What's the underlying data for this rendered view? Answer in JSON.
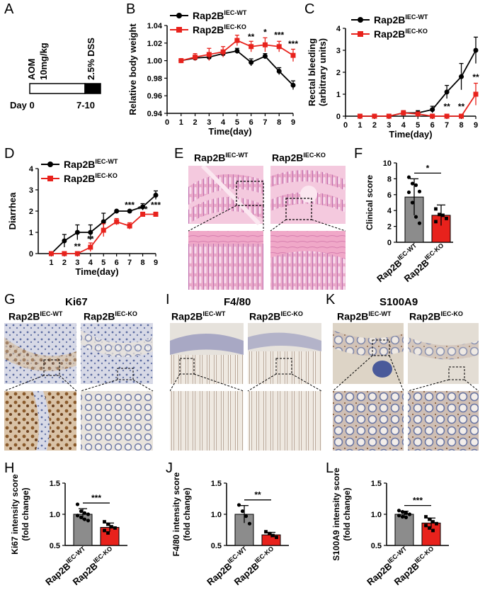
{
  "panels": [
    "A",
    "B",
    "C",
    "D",
    "E",
    "F",
    "G",
    "H",
    "I",
    "J",
    "K",
    "L"
  ],
  "groups": {
    "wt_base": "Rap2B",
    "wt_sup": "IEC-WT",
    "ko_base": "Rap2B",
    "ko_sup": "IEC-KO",
    "wt_color": "#000000",
    "ko_color": "#e8221c"
  },
  "panel_a": {
    "aom_line1": "AOM",
    "aom_line2": "10mg/kg",
    "dss": "2.5% DSS",
    "day_label": "Day 0",
    "end_label": "7-10"
  },
  "stain_titles": {
    "g": "Ki67",
    "i": "F4/80",
    "k": "S100A9"
  },
  "chart_data": [
    {
      "id": "B",
      "type": "line",
      "xlabel": "Time(day)",
      "ylabel": "Relative body weight",
      "x": [
        0,
        1,
        2,
        3,
        4,
        5,
        6,
        7,
        8,
        9
      ],
      "xlim": [
        0,
        9
      ],
      "ylim": [
        0.94,
        1.04
      ],
      "xticks": [
        0,
        1,
        2,
        3,
        4,
        5,
        6,
        7,
        8,
        9
      ],
      "yticks": [
        0.94,
        0.96,
        0.98,
        1.0,
        1.02,
        1.04
      ],
      "ytick_labels": [
        "0.94",
        "0.96",
        "0.98",
        "1.00",
        "1.02",
        "1.04"
      ],
      "legend": "top-left",
      "series": [
        {
          "name": "Rap2B IEC-WT",
          "color": "#000000",
          "x": [
            1,
            2,
            3,
            4,
            5,
            6,
            7,
            8,
            9
          ],
          "values": [
            1.0,
            1.003,
            1.004,
            1.008,
            1.011,
            0.998,
            1.005,
            0.988,
            0.972
          ],
          "err": [
            0.001,
            0.002,
            0.003,
            0.003,
            0.003,
            0.004,
            0.003,
            0.004,
            0.005
          ]
        },
        {
          "name": "Rap2B IEC-KO",
          "color": "#e8221c",
          "x": [
            1,
            2,
            3,
            4,
            5,
            6,
            7,
            8,
            9
          ],
          "values": [
            1.0,
            1.004,
            1.007,
            1.01,
            1.023,
            1.016,
            1.018,
            1.016,
            1.006
          ],
          "err": [
            0.001,
            0.004,
            0.007,
            0.006,
            0.006,
            0.006,
            0.008,
            0.006,
            0.007
          ]
        }
      ],
      "annotations": [
        {
          "x": 6,
          "y": 1.024,
          "text": "**"
        },
        {
          "x": 7,
          "y": 1.029,
          "text": "*"
        },
        {
          "x": 8,
          "y": 1.026,
          "text": "***"
        },
        {
          "x": 9,
          "y": 1.016,
          "text": "***"
        }
      ]
    },
    {
      "id": "C",
      "type": "line",
      "xlabel": "Time(day)",
      "ylabel": "Rectal bleeding (arbitrary units)",
      "ylabel_lines": [
        "Rectal bleeding",
        "(arbitrary units)"
      ],
      "xlim": [
        0,
        9
      ],
      "ylim": [
        0,
        4
      ],
      "xticks": [
        0,
        1,
        2,
        3,
        4,
        5,
        6,
        7,
        8,
        9
      ],
      "yticks": [
        0,
        1,
        2,
        3,
        4
      ],
      "ytick_labels": [
        "0",
        "1",
        "2",
        "3",
        "4"
      ],
      "legend": "top-left",
      "series": [
        {
          "name": "Rap2B IEC-WT",
          "color": "#000000",
          "x": [
            1,
            2,
            3,
            4,
            5,
            6,
            7,
            8,
            9
          ],
          "values": [
            0,
            0,
            0,
            0.15,
            0.15,
            0.3,
            1.1,
            1.8,
            3.0
          ],
          "err": [
            0,
            0,
            0,
            0.1,
            0.1,
            0.15,
            0.3,
            0.6,
            0.6
          ]
        },
        {
          "name": "Rap2B IEC-KO",
          "color": "#e8221c",
          "x": [
            1,
            2,
            3,
            4,
            5,
            6,
            7,
            8,
            9
          ],
          "values": [
            0,
            0,
            0,
            0.15,
            0.1,
            0,
            0,
            0,
            1.0
          ],
          "err": [
            0,
            0,
            0,
            0.1,
            0.08,
            0,
            0,
            0,
            0.5
          ]
        }
      ],
      "annotations": [
        {
          "x": 7,
          "y": 0.3,
          "text": "**"
        },
        {
          "x": 8,
          "y": 0.3,
          "text": "**"
        },
        {
          "x": 9,
          "y": 1.65,
          "text": "**"
        }
      ]
    },
    {
      "id": "D",
      "type": "line",
      "xlabel": "Time(day)",
      "ylabel": "Diarrhea",
      "xlim": [
        0,
        9
      ],
      "ylim": [
        0,
        4
      ],
      "xticks": [
        1,
        2,
        3,
        4,
        5,
        6,
        7,
        8,
        9
      ],
      "yticks": [
        0,
        1,
        2,
        3,
        4
      ],
      "ytick_labels": [
        "0",
        "1",
        "2",
        "3",
        "4"
      ],
      "legend": "top-left",
      "series": [
        {
          "name": "Rap2B IEC-WT",
          "color": "#000000",
          "x": [
            1,
            2,
            3,
            4,
            5,
            6,
            7,
            8,
            9
          ],
          "values": [
            0,
            0.6,
            1.0,
            1.0,
            1.5,
            2.0,
            2.0,
            2.2,
            2.75
          ],
          "err": [
            0,
            0.3,
            0.35,
            0.35,
            0.4,
            0,
            0,
            0.15,
            0.2
          ]
        },
        {
          "name": "Rap2B IEC-KO",
          "color": "#e8221c",
          "x": [
            1,
            2,
            3,
            4,
            5,
            6,
            7,
            8,
            9
          ],
          "values": [
            0,
            0,
            0,
            0.3,
            1.1,
            1.5,
            1.3,
            1.85,
            1.85
          ],
          "err": [
            0,
            0,
            0,
            0.2,
            0.3,
            0.15,
            0.15,
            0.1,
            0.1
          ]
        }
      ],
      "annotations": [
        {
          "x": 3,
          "y": 0.2,
          "text": "**"
        },
        {
          "x": 4,
          "y": 0.55,
          "text": "**"
        },
        {
          "x": 7,
          "y": 2.15,
          "text": "***"
        },
        {
          "x": 8,
          "y": 1.95,
          "text": "***"
        },
        {
          "x": 9,
          "y": 2.15,
          "text": "***"
        }
      ]
    },
    {
      "id": "F",
      "type": "bar",
      "ylabel": "Clinical score",
      "ylim": [
        0,
        10
      ],
      "yticks": [
        0,
        2,
        4,
        6,
        8,
        10
      ],
      "ytick_labels": [
        "0",
        "2",
        "4",
        "6",
        "8",
        "10"
      ],
      "categories": [
        "Rap2B IEC-WT",
        "Rap2B IEC-KO"
      ],
      "values": [
        5.7,
        3.4
      ],
      "err": [
        2.3,
        1.3
      ],
      "colors": [
        "#8c8c8c",
        "#e8221c"
      ],
      "points": [
        [
          8.2,
          7.4,
          7.2,
          6.4,
          6.3,
          5.0,
          3.2,
          2.4
        ],
        [
          4.2,
          3.5,
          3.4,
          3.0,
          2.6
        ]
      ],
      "significance": "*"
    },
    {
      "id": "H",
      "type": "bar",
      "ylabel": "Ki67 intensity score (fold change)",
      "ylabel_lines": [
        "Ki67 intensity score",
        "(fold change)"
      ],
      "ylim": [
        0.5,
        1.5
      ],
      "yticks": [
        0.5,
        1.0,
        1.5
      ],
      "ytick_labels": [
        "0.5",
        "1.0",
        "1.5"
      ],
      "categories": [
        "Rap2B IEC-WT",
        "Rap2B IEC-KO"
      ],
      "values": [
        1.0,
        0.79
      ],
      "err": [
        0.09,
        0.07
      ],
      "colors": [
        "#8c8c8c",
        "#e8221c"
      ],
      "points": [
        [
          1.16,
          1.05,
          1.02,
          1.0,
          0.98,
          0.95,
          0.92,
          0.9
        ],
        [
          0.88,
          0.84,
          0.8,
          0.78,
          0.74,
          0.7
        ]
      ],
      "significance": "***"
    },
    {
      "id": "J",
      "type": "bar",
      "ylabel": "F4/80 intensity score (fold change)",
      "ylabel_lines": [
        "F4/80 intensity score",
        "(fold change)"
      ],
      "ylim": [
        0.5,
        1.5
      ],
      "yticks": [
        0.5,
        1.0,
        1.5
      ],
      "ytick_labels": [
        "0.5",
        "1.0",
        "1.5"
      ],
      "categories": [
        "Rap2B IEC-WT",
        "Rap2B IEC-KO"
      ],
      "values": [
        1.0,
        0.67
      ],
      "err": [
        0.14,
        0.04
      ],
      "colors": [
        "#8c8c8c",
        "#e8221c"
      ],
      "points": [
        [
          1.15,
          1.05,
          0.97,
          0.85
        ],
        [
          0.72,
          0.69,
          0.66,
          0.63
        ]
      ],
      "significance": "**"
    },
    {
      "id": "L",
      "type": "bar",
      "ylabel": "S100A9 intensity score (fold change)",
      "ylabel_lines": [
        "S100A9 intensity score",
        "(fold change)"
      ],
      "ylim": [
        0.5,
        1.5
      ],
      "yticks": [
        0.5,
        1.0,
        1.5
      ],
      "ytick_labels": [
        "0.5",
        "1.0",
        "1.5"
      ],
      "categories": [
        "Rap2B IEC-WT",
        "Rap2B IEC-KO"
      ],
      "values": [
        1.0,
        0.86
      ],
      "err": [
        0.05,
        0.08
      ],
      "colors": [
        "#8c8c8c",
        "#e8221c"
      ],
      "points": [
        [
          1.06,
          1.04,
          1.02,
          1.0,
          0.98,
          0.96,
          0.95
        ],
        [
          0.96,
          0.92,
          0.88,
          0.85,
          0.82,
          0.78,
          0.74
        ]
      ],
      "significance": "***"
    }
  ]
}
